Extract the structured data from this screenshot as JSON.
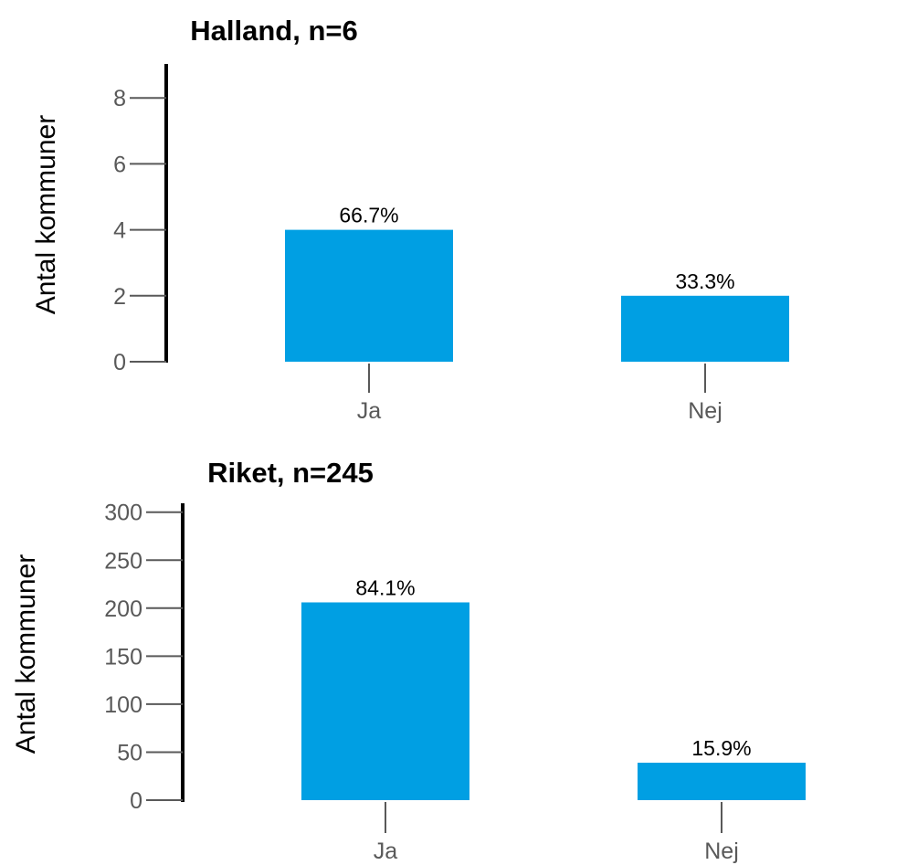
{
  "chart_data": [
    {
      "type": "bar",
      "title": "Halland, n=6",
      "ylabel": "Antal kommuner",
      "xlabel": "",
      "categories": [
        "Ja",
        "Nej"
      ],
      "values": [
        4,
        2
      ],
      "data_labels": [
        "66.7%",
        "33.3%"
      ],
      "yticks": [
        0,
        2,
        4,
        6,
        8
      ],
      "ylim": [
        0,
        9
      ],
      "grid": false,
      "legend": "none",
      "bar_color": "#009FE3"
    },
    {
      "type": "bar",
      "title": "Riket, n=245",
      "ylabel": "Antal kommuner",
      "xlabel": "",
      "categories": [
        "Ja",
        "Nej"
      ],
      "values": [
        206,
        39
      ],
      "data_labels": [
        "84.1%",
        "15.9%"
      ],
      "yticks": [
        0,
        50,
        100,
        150,
        200,
        250,
        300
      ],
      "ylim": [
        0,
        305
      ],
      "grid": false,
      "legend": "none",
      "bar_color": "#009FE3"
    }
  ]
}
